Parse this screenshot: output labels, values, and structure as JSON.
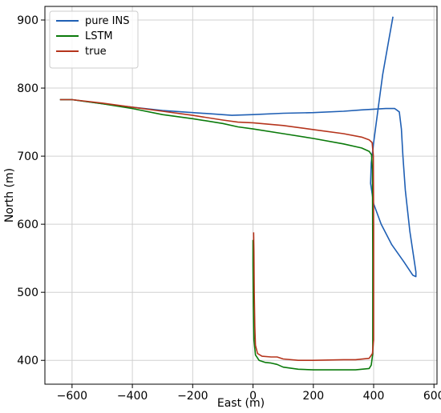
{
  "chart_data": {
    "type": "line",
    "title": "",
    "xlabel": "East (m)",
    "ylabel": "North (m)",
    "xlim": [
      -690,
      610
    ],
    "ylim": [
      365,
      920
    ],
    "xticks": [
      -600,
      -400,
      -200,
      0,
      200,
      400,
      600
    ],
    "yticks": [
      400,
      500,
      600,
      700,
      800,
      900
    ],
    "grid": true,
    "legend_placement": "top-left",
    "series": [
      {
        "name": "pure INS",
        "color": "#1f5fb4",
        "points": [
          [
            -640,
            783
          ],
          [
            -600,
            783
          ],
          [
            -500,
            777
          ],
          [
            -400,
            772
          ],
          [
            -300,
            767
          ],
          [
            -200,
            764
          ],
          [
            -130,
            762
          ],
          [
            -70,
            760
          ],
          [
            0,
            761
          ],
          [
            100,
            763
          ],
          [
            200,
            764
          ],
          [
            300,
            766
          ],
          [
            360,
            768
          ],
          [
            400,
            769
          ],
          [
            440,
            770
          ],
          [
            470,
            770
          ],
          [
            485,
            765
          ],
          [
            492,
            740
          ],
          [
            497,
            700
          ],
          [
            505,
            650
          ],
          [
            520,
            590
          ],
          [
            535,
            545
          ],
          [
            540,
            530
          ],
          [
            540,
            523
          ],
          [
            530,
            525
          ],
          [
            500,
            545
          ],
          [
            460,
            570
          ],
          [
            425,
            600
          ],
          [
            400,
            630
          ],
          [
            390,
            660
          ],
          [
            392,
            690
          ],
          [
            400,
            720
          ],
          [
            415,
            770
          ],
          [
            430,
            820
          ],
          [
            450,
            870
          ],
          [
            464,
            905
          ]
        ]
      },
      {
        "name": "LSTM",
        "color": "#0a7a0a",
        "points": [
          [
            -640,
            783
          ],
          [
            -600,
            783
          ],
          [
            -500,
            777
          ],
          [
            -400,
            770
          ],
          [
            -300,
            761
          ],
          [
            -200,
            755
          ],
          [
            -100,
            748
          ],
          [
            -50,
            743
          ],
          [
            0,
            740
          ],
          [
            100,
            733
          ],
          [
            200,
            726
          ],
          [
            300,
            718
          ],
          [
            360,
            712
          ],
          [
            385,
            707
          ],
          [
            393,
            702
          ],
          [
            396,
            680
          ],
          [
            397,
            550
          ],
          [
            397,
            410
          ],
          [
            392,
            393
          ],
          [
            385,
            388
          ],
          [
            340,
            386
          ],
          [
            300,
            386
          ],
          [
            200,
            386
          ],
          [
            150,
            387
          ],
          [
            100,
            390
          ],
          [
            80,
            394
          ],
          [
            60,
            396
          ],
          [
            40,
            397
          ],
          [
            20,
            400
          ],
          [
            8,
            408
          ],
          [
            3,
            430
          ],
          [
            1,
            480
          ],
          [
            0,
            540
          ],
          [
            0,
            577
          ]
        ]
      },
      {
        "name": "true",
        "color": "#b5341c",
        "points": [
          [
            -640,
            783
          ],
          [
            -600,
            783
          ],
          [
            -500,
            778
          ],
          [
            -400,
            772
          ],
          [
            -300,
            766
          ],
          [
            -200,
            760
          ],
          [
            -100,
            753
          ],
          [
            -50,
            750
          ],
          [
            0,
            749
          ],
          [
            100,
            745
          ],
          [
            200,
            739
          ],
          [
            300,
            733
          ],
          [
            360,
            728
          ],
          [
            385,
            724
          ],
          [
            395,
            720
          ],
          [
            399,
            700
          ],
          [
            400,
            600
          ],
          [
            400,
            430
          ],
          [
            396,
            410
          ],
          [
            385,
            403
          ],
          [
            340,
            401
          ],
          [
            300,
            401
          ],
          [
            200,
            400
          ],
          [
            150,
            400
          ],
          [
            100,
            402
          ],
          [
            80,
            405
          ],
          [
            60,
            405
          ],
          [
            30,
            406
          ],
          [
            15,
            410
          ],
          [
            8,
            422
          ],
          [
            6,
            450
          ],
          [
            4,
            500
          ],
          [
            3,
            560
          ],
          [
            2,
            588
          ]
        ]
      }
    ]
  }
}
